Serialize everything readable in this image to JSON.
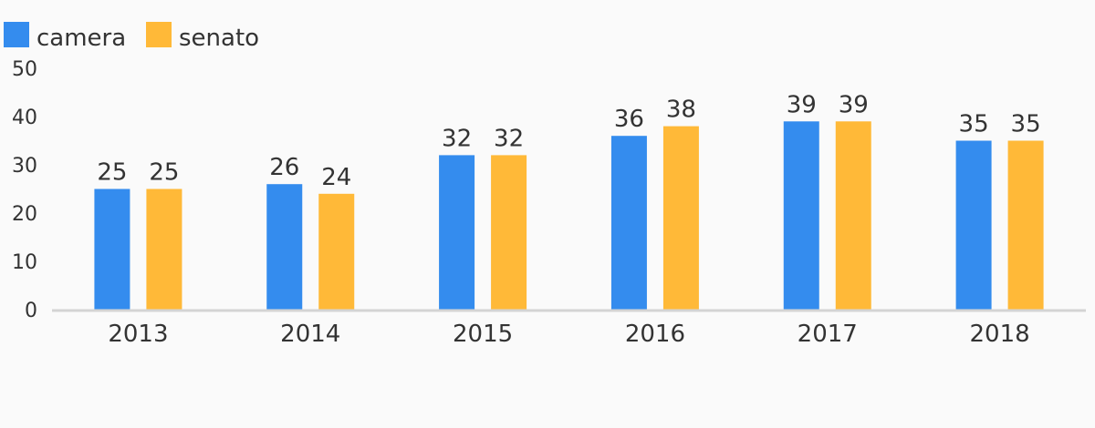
{
  "chart_data": {
    "type": "bar",
    "title": "",
    "xlabel": "",
    "ylabel": "",
    "categories": [
      "2013",
      "2014",
      "2015",
      "2016",
      "2017",
      "2018"
    ],
    "series": [
      {
        "name": "camera",
        "values": [
          25,
          26,
          32,
          36,
          39,
          35
        ],
        "color": "#348cee"
      },
      {
        "name": "senato",
        "values": [
          25,
          24,
          32,
          38,
          39,
          35
        ],
        "color": "#ffb938"
      }
    ],
    "ylim": [
      0,
      50
    ],
    "yticks": [
      "0",
      "10",
      "20",
      "30",
      "40",
      "50"
    ],
    "grid": false,
    "legend_position": "top-left",
    "data_labels": true,
    "axis_color": "#d4d4d4"
  }
}
